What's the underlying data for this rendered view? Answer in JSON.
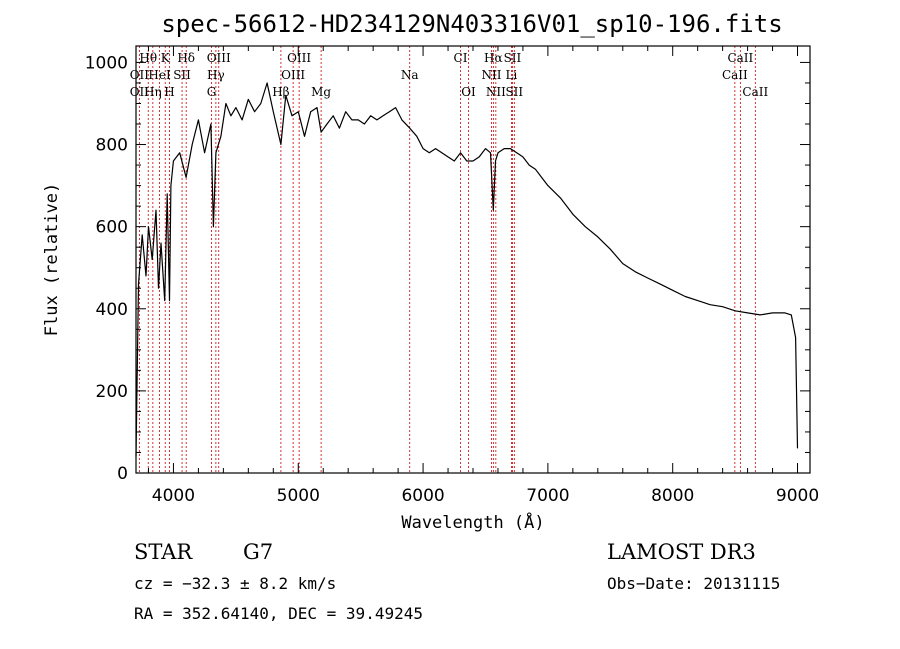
{
  "chart_data": {
    "type": "line",
    "title": "spec-56612-HD234129N403316V01_sp10-196.fits",
    "xlabel": "Wavelength (Å)",
    "ylabel": "Flux (relative)",
    "xlim": [
      3700,
      9100
    ],
    "ylim": [
      0,
      1040
    ],
    "xticks": [
      4000,
      5000,
      6000,
      7000,
      8000,
      9000
    ],
    "yticks": [
      0,
      200,
      400,
      600,
      800,
      1000
    ],
    "series": [
      {
        "name": "spectrum",
        "x": [
          3700,
          3720,
          3750,
          3780,
          3800,
          3830,
          3860,
          3880,
          3900,
          3930,
          3950,
          3968,
          3980,
          4000,
          4050,
          4101,
          4150,
          4200,
          4250,
          4300,
          4320,
          4340,
          4380,
          4420,
          4460,
          4500,
          4550,
          4600,
          4650,
          4700,
          4750,
          4800,
          4861,
          4900,
          4950,
          5000,
          5050,
          5100,
          5150,
          5183,
          5230,
          5280,
          5330,
          5380,
          5430,
          5480,
          5530,
          5580,
          5630,
          5680,
          5730,
          5780,
          5830,
          5893,
          5950,
          6000,
          6050,
          6100,
          6150,
          6200,
          6250,
          6300,
          6350,
          6400,
          6450,
          6500,
          6540,
          6563,
          6580,
          6600,
          6650,
          6700,
          6750,
          6800,
          6850,
          6900,
          6950,
          7000,
          7100,
          7200,
          7300,
          7400,
          7500,
          7600,
          7700,
          7800,
          7900,
          8000,
          8100,
          8200,
          8300,
          8400,
          8500,
          8600,
          8700,
          8800,
          8900,
          8950,
          8985,
          9000
        ],
        "y": [
          40,
          460,
          580,
          480,
          600,
          520,
          640,
          450,
          560,
          420,
          680,
          420,
          700,
          760,
          780,
          720,
          800,
          860,
          780,
          850,
          600,
          780,
          820,
          900,
          870,
          890,
          860,
          910,
          880,
          900,
          950,
          880,
          800,
          920,
          870,
          880,
          820,
          880,
          890,
          830,
          850,
          870,
          840,
          880,
          860,
          860,
          850,
          870,
          860,
          870,
          880,
          890,
          860,
          840,
          820,
          790,
          780,
          790,
          780,
          770,
          760,
          780,
          760,
          760,
          770,
          790,
          780,
          640,
          760,
          780,
          790,
          790,
          780,
          770,
          750,
          740,
          720,
          700,
          670,
          630,
          600,
          575,
          545,
          510,
          490,
          475,
          460,
          445,
          430,
          420,
          410,
          405,
          395,
          390,
          385,
          390,
          390,
          385,
          330,
          60
        ]
      }
    ],
    "line_labels": [
      {
        "text": "Hθ",
        "x": 3798,
        "row": 1
      },
      {
        "text": "K",
        "x": 3934,
        "row": 1
      },
      {
        "text": "Hδ",
        "x": 4102,
        "row": 1
      },
      {
        "text": "OIII",
        "x": 4363,
        "row": 1
      },
      {
        "text": "OIII",
        "x": 5007,
        "row": 1
      },
      {
        "text": "CI",
        "x": 6300,
        "row": 1
      },
      {
        "text": "Hα",
        "x": 6563,
        "row": 1
      },
      {
        "text": "SII",
        "x": 6716,
        "row": 1
      },
      {
        "text": "CaII",
        "x": 8542,
        "row": 1
      },
      {
        "text": "OII",
        "x": 3727,
        "row": 2
      },
      {
        "text": "HeI",
        "x": 3889,
        "row": 2
      },
      {
        "text": "SII",
        "x": 4069,
        "row": 2
      },
      {
        "text": "Hγ",
        "x": 4340,
        "row": 2
      },
      {
        "text": "OIII",
        "x": 4959,
        "row": 2
      },
      {
        "text": "Na",
        "x": 5893,
        "row": 2
      },
      {
        "text": "NII",
        "x": 6548,
        "row": 2
      },
      {
        "text": "Li",
        "x": 6708,
        "row": 2
      },
      {
        "text": "CaII",
        "x": 8498,
        "row": 2
      },
      {
        "text": "OII",
        "x": 3727,
        "row": 3
      },
      {
        "text": "Hη",
        "x": 3835,
        "row": 3
      },
      {
        "text": "H",
        "x": 3968,
        "row": 3
      },
      {
        "text": "G",
        "x": 4305,
        "row": 3
      },
      {
        "text": "Hβ",
        "x": 4861,
        "row": 3
      },
      {
        "text": "Mg",
        "x": 5183,
        "row": 3
      },
      {
        "text": "OI",
        "x": 6364,
        "row": 3
      },
      {
        "text": "NII",
        "x": 6583,
        "row": 3
      },
      {
        "text": "SII",
        "x": 6731,
        "row": 3
      },
      {
        "text": "CaII",
        "x": 8662,
        "row": 3
      }
    ],
    "line_markers": [
      3727,
      3798,
      3835,
      3889,
      3934,
      3968,
      4069,
      4102,
      4305,
      4340,
      4363,
      4861,
      4959,
      5007,
      5183,
      5893,
      6300,
      6364,
      6548,
      6563,
      6583,
      6708,
      6716,
      6731,
      8498,
      8542,
      8662
    ],
    "line_color": "#000000",
    "marker_color": "#cc0000"
  },
  "info": {
    "object_class": "STAR",
    "subclass": "G7",
    "survey": "LAMOST DR3",
    "cz": "cz = −32.3 ± 8.2 km/s",
    "obs_date": "Obs−Date: 20131115",
    "coords": "RA = 352.64140, DEC =  39.49245"
  }
}
